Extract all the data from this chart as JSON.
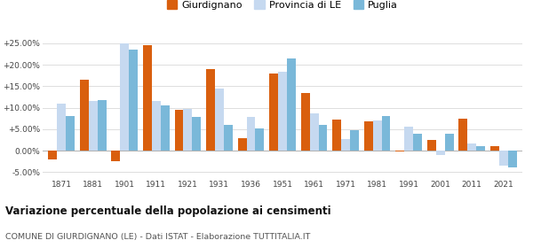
{
  "years": [
    1871,
    1881,
    1901,
    1911,
    1921,
    1931,
    1936,
    1951,
    1961,
    1971,
    1981,
    1991,
    2001,
    2011,
    2021
  ],
  "giurdignano": [
    -2.0,
    16.5,
    -2.5,
    24.5,
    9.5,
    19.0,
    3.0,
    18.0,
    13.5,
    7.2,
    6.8,
    -0.1,
    2.5,
    7.5,
    1.0
  ],
  "provincia_le": [
    11.0,
    11.5,
    25.0,
    11.5,
    9.7,
    14.5,
    7.8,
    18.3,
    8.7,
    2.8,
    7.0,
    5.5,
    -1.0,
    1.7,
    -3.5
  ],
  "puglia": [
    8.0,
    11.8,
    23.5,
    10.5,
    7.8,
    6.0,
    5.2,
    21.5,
    6.0,
    4.7,
    8.0,
    4.0,
    4.0,
    1.0,
    -3.8
  ],
  "color_giurdignano": "#d95f0e",
  "color_provincia": "#c6d9f0",
  "color_puglia": "#7ab8d9",
  "title": "Variazione percentuale della popolazione ai censimenti",
  "subtitle": "COMUNE DI GIURDIGNANO (LE) - Dati ISTAT - Elaborazione TUTTITALIA.IT",
  "ylabel_ticks": [
    "-5.00%",
    "0.00%",
    "+5.00%",
    "+10.00%",
    "+15.00%",
    "+20.00%",
    "+25.00%"
  ],
  "yticks": [
    -5,
    0,
    5,
    10,
    15,
    20,
    25
  ],
  "ylim": [
    -6.5,
    27
  ],
  "bar_width": 0.28,
  "legend_labels": [
    "Giurdignano",
    "Provincia di LE",
    "Puglia"
  ],
  "background_color": "#ffffff",
  "grid_color": "#dddddd"
}
